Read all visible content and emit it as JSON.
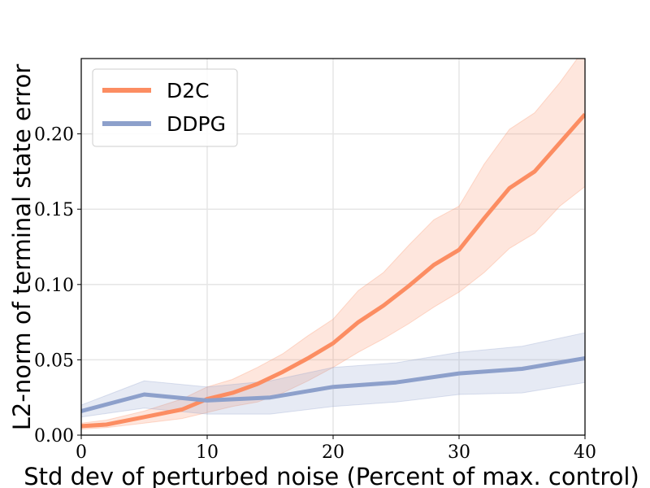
{
  "chart_data": {
    "type": "line",
    "xlabel": "Std dev of perturbed noise (Percent of max. control)",
    "ylabel": "L2-norm of terminal state error",
    "xlim": [
      0,
      40
    ],
    "ylim": [
      0,
      0.25
    ],
    "xticks": [
      0,
      10,
      20,
      30,
      40
    ],
    "xtick_labels": [
      "0",
      "10",
      "20",
      "30",
      "40"
    ],
    "yticks": [
      0.0,
      0.05,
      0.1,
      0.15,
      0.2
    ],
    "ytick_labels": [
      "0.00",
      "0.05",
      "0.10",
      "0.15",
      "0.20"
    ],
    "grid": true,
    "legend_position": "top-left",
    "series": [
      {
        "name": "D2C",
        "color": "#fc8d62",
        "x": [
          0,
          2,
          5,
          8,
          10,
          12,
          14,
          16,
          18,
          20,
          22,
          24,
          26,
          28,
          30,
          32,
          34,
          36,
          38,
          40
        ],
        "y": [
          0.006,
          0.007,
          0.012,
          0.017,
          0.024,
          0.028,
          0.034,
          0.042,
          0.051,
          0.061,
          0.075,
          0.086,
          0.099,
          0.113,
          0.123,
          0.144,
          0.164,
          0.175,
          0.194,
          0.213
        ],
        "lower": [
          0.004,
          0.005,
          0.008,
          0.011,
          0.015,
          0.019,
          0.022,
          0.028,
          0.036,
          0.045,
          0.055,
          0.064,
          0.074,
          0.085,
          0.095,
          0.108,
          0.124,
          0.134,
          0.152,
          0.165
        ],
        "upper": [
          0.008,
          0.01,
          0.016,
          0.024,
          0.032,
          0.037,
          0.045,
          0.054,
          0.066,
          0.077,
          0.096,
          0.108,
          0.126,
          0.143,
          0.152,
          0.18,
          0.203,
          0.214,
          0.234,
          0.257
        ]
      },
      {
        "name": "DDPG",
        "color": "#8da0cb",
        "x": [
          0,
          5,
          10,
          15,
          20,
          25,
          30,
          35,
          40
        ],
        "y": [
          0.016,
          0.027,
          0.023,
          0.025,
          0.032,
          0.035,
          0.041,
          0.044,
          0.051
        ],
        "lower": [
          0.012,
          0.018,
          0.014,
          0.014,
          0.019,
          0.022,
          0.027,
          0.028,
          0.035
        ],
        "upper": [
          0.02,
          0.036,
          0.032,
          0.036,
          0.045,
          0.048,
          0.055,
          0.059,
          0.068
        ]
      }
    ]
  }
}
